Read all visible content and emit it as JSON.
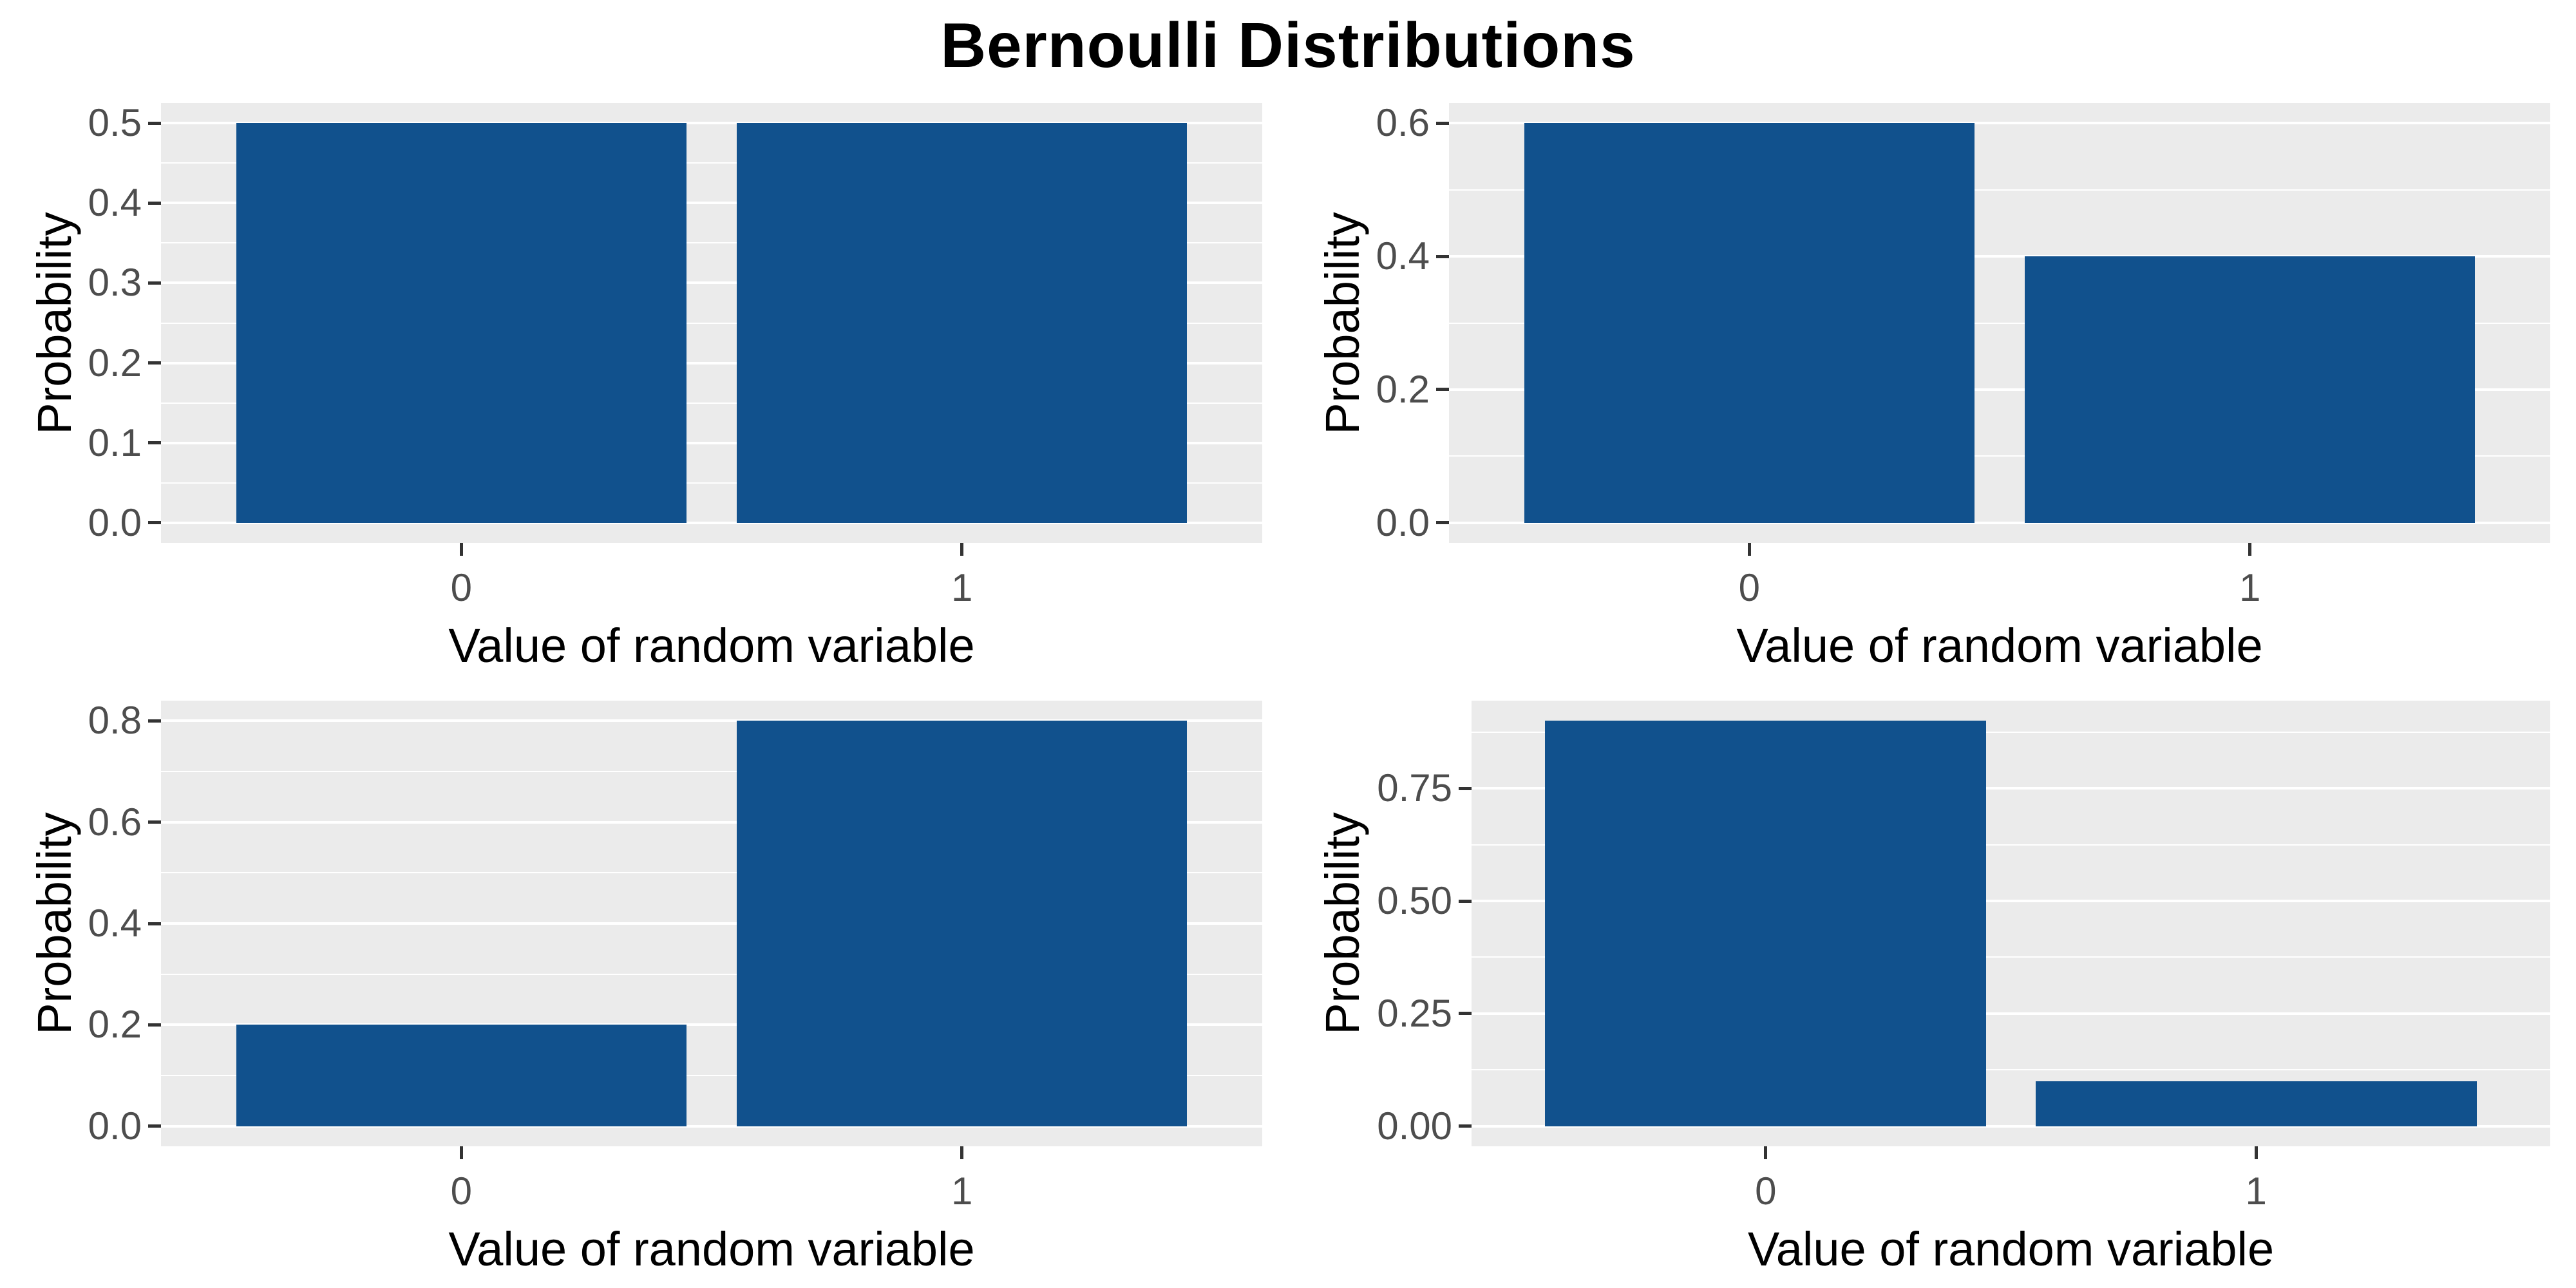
{
  "page_title": "Bernoulli Distributions",
  "colors": {
    "bar_fill": "#11518D",
    "panel_background": "#EBEBEB",
    "gridline": "#FFFFFF",
    "tick_label_text": "#4D4D4D",
    "tick_mark": "#333333",
    "title_text": "#000000",
    "page_background": "#FFFFFF"
  },
  "chart_data": [
    {
      "type": "bar",
      "categories": [
        "0",
        "1"
      ],
      "values": [
        0.5,
        0.5
      ],
      "xlabel": "Value of random variable",
      "ylabel": "Probability",
      "y_ticks": [
        0.0,
        0.1,
        0.2,
        0.3,
        0.4,
        0.5
      ],
      "y_tick_labels": [
        "0.0",
        "0.1",
        "0.2",
        "0.3",
        "0.4",
        "0.5"
      ],
      "y_minor_gridlines": [
        0.05,
        0.15,
        0.25,
        0.35,
        0.45
      ],
      "ylim": [
        -0.025,
        0.525
      ],
      "grid": "on",
      "legend": "none"
    },
    {
      "type": "bar",
      "categories": [
        "0",
        "1"
      ],
      "values": [
        0.6,
        0.4
      ],
      "xlabel": "Value of random variable",
      "ylabel": "Probability",
      "y_ticks": [
        0.0,
        0.2,
        0.4,
        0.6
      ],
      "y_tick_labels": [
        "0.0",
        "0.2",
        "0.4",
        "0.6"
      ],
      "y_minor_gridlines": [
        0.1,
        0.3,
        0.5
      ],
      "ylim": [
        -0.03,
        0.63
      ],
      "grid": "on",
      "legend": "none"
    },
    {
      "type": "bar",
      "categories": [
        "0",
        "1"
      ],
      "values": [
        0.2,
        0.8
      ],
      "xlabel": "Value of random variable",
      "ylabel": "Probability",
      "y_ticks": [
        0.0,
        0.2,
        0.4,
        0.6,
        0.8
      ],
      "y_tick_labels": [
        "0.0",
        "0.2",
        "0.4",
        "0.6",
        "0.8"
      ],
      "y_minor_gridlines": [
        0.1,
        0.3,
        0.5,
        0.7
      ],
      "ylim": [
        -0.04,
        0.84
      ],
      "grid": "on",
      "legend": "none"
    },
    {
      "type": "bar",
      "categories": [
        "0",
        "1"
      ],
      "values": [
        0.9,
        0.1
      ],
      "xlabel": "Value of random variable",
      "ylabel": "Probability",
      "y_ticks": [
        0.0,
        0.25,
        0.5,
        0.75
      ],
      "y_tick_labels": [
        "0.00",
        "0.25",
        "0.50",
        "0.75"
      ],
      "y_minor_gridlines": [
        0.125,
        0.375,
        0.625,
        0.875
      ],
      "ylim": [
        -0.045,
        0.945
      ],
      "grid": "on",
      "legend": "none"
    }
  ]
}
